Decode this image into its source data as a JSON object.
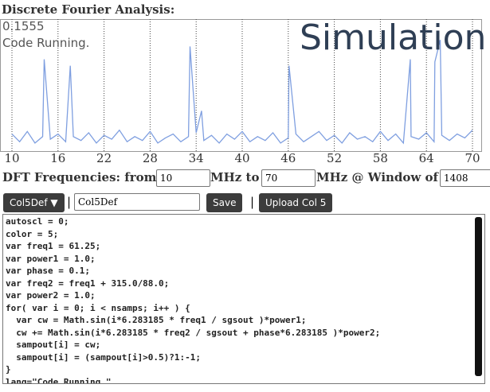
{
  "header": {
    "title": "Discrete Fourier Analysis:"
  },
  "overlay": {
    "value": "0.1555",
    "status": "Code Running.",
    "label": "Simulation"
  },
  "chart_data": {
    "type": "line",
    "color": "#7f9fe0",
    "grid": true,
    "x": [
      10,
      11,
      12,
      13,
      14,
      14.2,
      15,
      16,
      17,
      17.6,
      18,
      19,
      20,
      21,
      22,
      23,
      24,
      25,
      26,
      27,
      28,
      29,
      30,
      31,
      32,
      33,
      33.2,
      34,
      34.7,
      35,
      36,
      37,
      38,
      39,
      40,
      41,
      42,
      43,
      44,
      45,
      46,
      46.1,
      47,
      48,
      49,
      50,
      51,
      52,
      53,
      54,
      55,
      56,
      57,
      58,
      59,
      60,
      61,
      61.9,
      62,
      63,
      64,
      65,
      65.1,
      65.8,
      66,
      67,
      68,
      69,
      70
    ],
    "values": [
      0.12,
      0.06,
      0.14,
      0.05,
      0.1,
      0.7,
      0.08,
      0.12,
      0.06,
      0.65,
      0.1,
      0.07,
      0.13,
      0.05,
      0.11,
      0.08,
      0.15,
      0.06,
      0.1,
      0.07,
      0.14,
      0.05,
      0.09,
      0.12,
      0.06,
      0.1,
      0.8,
      0.13,
      0.3,
      0.07,
      0.11,
      0.05,
      0.12,
      0.08,
      0.14,
      0.06,
      0.1,
      0.07,
      0.13,
      0.05,
      0.09,
      0.65,
      0.12,
      0.06,
      0.1,
      0.14,
      0.07,
      0.11,
      0.05,
      0.13,
      0.08,
      0.1,
      0.06,
      0.14,
      0.07,
      0.12,
      0.05,
      0.7,
      0.1,
      0.08,
      0.13,
      0.06,
      0.68,
      0.85,
      0.11,
      0.07,
      0.12,
      0.09,
      0.15
    ],
    "xlim": [
      10,
      70
    ],
    "ylim": [
      0,
      1
    ],
    "xticks": [
      10,
      16,
      22,
      28,
      34,
      40,
      46,
      52,
      58,
      64,
      70
    ]
  },
  "form": {
    "from_label": "DFT Frequencies: from:",
    "from": "10",
    "to_label": "MHz to",
    "to": "70",
    "window_label": "MHz @ Window of",
    "window": "1408"
  },
  "controls": {
    "select": "Col5Def ▼",
    "sep1": "|",
    "name": "Col5Def",
    "save": "Save",
    "sep2": "|",
    "upload": "Upload Col 5"
  },
  "code": {
    "lines": [
      "autoscl = 0;",
      "color = 5;",
      "var freq1 = 61.25;",
      "var power1 = 1.0;",
      "var phase = 0.1;",
      "var freq2 = freq1 + 315.0/88.0;",
      "var power2 = 1.0;",
      "for( var i = 0; i < nsamps; i++ ) {",
      "  var cw = Math.sin(i*6.283185 * freq1 / sgsout )*power1;",
      "  cw += Math.sin(i*6.283185 * freq2 / sgsout + phase*6.283185 )*power2;",
      "  sampout[i] = cw;",
      "  sampout[i] = (sampout[i]>0.5)?1:-1;",
      "}",
      "lang=\"Code Running.\""
    ]
  }
}
